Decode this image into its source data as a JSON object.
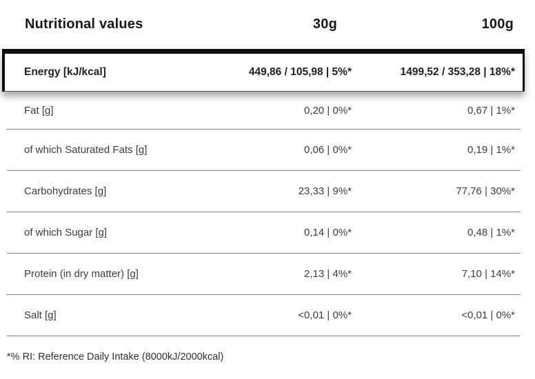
{
  "table": {
    "header": {
      "title": "Nutritional values",
      "col_30g": "30g",
      "col_100g": "100g"
    },
    "energy_row": {
      "label": "Energy [kJ/kcal]",
      "v30": "449,86 / 105,98 | 5%*",
      "v100": "1499,52 / 353,28 | 18%*"
    },
    "rows": [
      {
        "label": "Fat [g]",
        "v30": "0,20 | 0%*",
        "v100": "0,67 | 1%*"
      },
      {
        "label": "of which Saturated Fats [g]",
        "v30": "0,06 | 0%*",
        "v100": "0,19 | 1%*"
      },
      {
        "label": "Carbohydrates [g]",
        "v30": "23,33 | 9%*",
        "v100": "77,76 | 30%*"
      },
      {
        "label": "of which Sugar [g]",
        "v30": "0,14 | 0%*",
        "v100": "0,48 | 1%*"
      },
      {
        "label": "Protein (in dry matter) [g]",
        "v30": "2,13 | 4%*",
        "v100": "7,10 | 14%*"
      },
      {
        "label": "Salt [g]",
        "v30": "<0,01 | 0%*",
        "v100": "<0,01 | 0%*"
      }
    ],
    "footnote": "*% RI: Reference Daily Intake (8000kJ/2000kcal)"
  },
  "colors": {
    "heading_text": "#17171d",
    "row_text": "#3b3b44",
    "rule_black": "#0d0d0d",
    "separator_gray": "#82828a",
    "background": "#ffffff"
  }
}
